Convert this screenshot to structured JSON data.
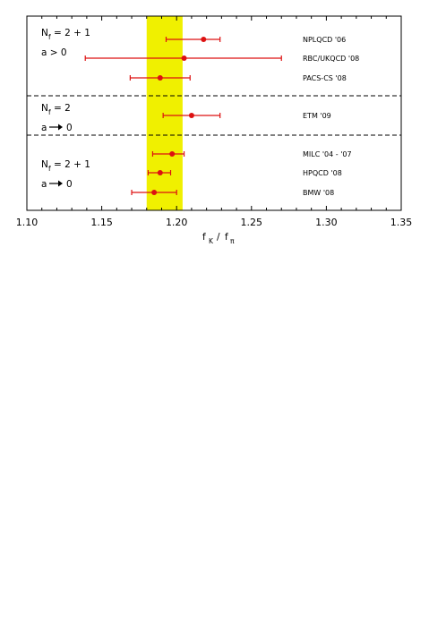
{
  "chart_data": {
    "type": "scatter",
    "xlabel": "f K / f π",
    "xlabel_parts": {
      "f1": "f",
      "sub1": "K",
      "slash": "/",
      "f2": "f",
      "sub2": "π"
    },
    "xlim": [
      1.1,
      1.35
    ],
    "xticks": [
      "1.10",
      "1.15",
      "1.20",
      "1.25",
      "1.30",
      "1.35"
    ],
    "band": {
      "from": 1.18,
      "to": 1.204,
      "color": "#f0f000"
    },
    "colors": {
      "point": "#dd1111",
      "errorbar": "#dd1111",
      "divider": "#000000"
    },
    "groups": [
      {
        "N": "N",
        "f": "f",
        "rhs": "= 2 + 1",
        "cond": "a > 0",
        "arrow": false
      },
      {
        "N": "N",
        "f": "f",
        "rhs": "= 2",
        "cond": "a",
        "condrhs": "0",
        "arrow": true
      },
      {
        "N": "N",
        "f": "f",
        "rhs": "= 2 + 1",
        "cond": "a",
        "condrhs": "0",
        "arrow": true
      }
    ],
    "series": [
      {
        "name": "NPLQCD '06",
        "group": 0,
        "value": 1.218,
        "low": 1.193,
        "high": 1.229
      },
      {
        "name": "RBC/UKQCD '08",
        "group": 0,
        "value": 1.205,
        "low": 1.139,
        "high": 1.27
      },
      {
        "name": "PACS-CS '08",
        "group": 0,
        "value": 1.189,
        "low": 1.169,
        "high": 1.209
      },
      {
        "name": "ETM '09",
        "group": 1,
        "value": 1.21,
        "low": 1.191,
        "high": 1.229
      },
      {
        "name": "MILC '04 - '07",
        "group": 2,
        "value": 1.197,
        "low": 1.184,
        "high": 1.205
      },
      {
        "name": "HPQCD '08",
        "group": 2,
        "value": 1.189,
        "low": 1.181,
        "high": 1.196
      },
      {
        "name": "BMW '08",
        "group": 2,
        "value": 1.185,
        "low": 1.17,
        "high": 1.2
      }
    ]
  }
}
